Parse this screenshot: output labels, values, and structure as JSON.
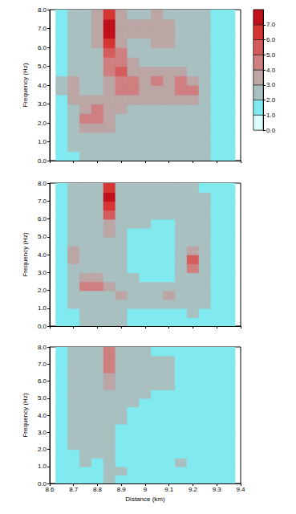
{
  "chart_data": [
    {
      "type": "heatmap",
      "y_label": "Frequency (Hz)",
      "tick_labels": "y",
      "x": [
        8.65,
        8.7,
        8.75,
        8.8,
        8.85,
        8.9,
        8.95,
        9.0,
        9.05,
        9.1,
        9.15,
        9.2,
        9.25,
        9.3,
        9.35
      ],
      "y": [
        0.25,
        0.75,
        1.25,
        1.75,
        2.25,
        2.75,
        3.25,
        3.75,
        4.25,
        4.75,
        5.25,
        5.75,
        6.25,
        6.75,
        7.25,
        7.75
      ],
      "cells": [
        [
          1.5,
          1.8,
          2.2,
          2.3,
          2.5,
          2.3,
          2.2,
          2.2,
          2.2,
          2.2,
          2.2,
          2.1,
          2.0,
          1.6,
          1.2
        ],
        [
          1.5,
          2.0,
          2.4,
          2.5,
          2.6,
          2.5,
          2.4,
          2.4,
          2.3,
          2.4,
          2.3,
          2.2,
          2.1,
          1.7,
          1.2
        ],
        [
          1.6,
          2.2,
          2.6,
          2.7,
          2.8,
          2.7,
          2.5,
          2.5,
          2.4,
          2.5,
          2.4,
          2.3,
          2.2,
          1.8,
          1.3
        ],
        [
          1.7,
          2.4,
          3.2,
          3.4,
          3.0,
          2.8,
          2.6,
          2.6,
          2.5,
          2.6,
          2.5,
          2.4,
          2.3,
          1.8,
          1.3
        ],
        [
          1.7,
          2.6,
          4.2,
          4.4,
          3.3,
          2.9,
          2.8,
          2.7,
          2.6,
          2.7,
          2.6,
          2.6,
          2.3,
          1.8,
          1.3
        ],
        [
          1.8,
          2.8,
          3.8,
          4.0,
          3.3,
          3.0,
          2.9,
          2.8,
          2.7,
          2.8,
          2.8,
          2.8,
          2.3,
          1.8,
          1.3
        ],
        [
          1.9,
          3.2,
          3.0,
          3.0,
          3.4,
          3.6,
          3.3,
          3.0,
          3.1,
          3.3,
          3.4,
          3.6,
          2.4,
          1.8,
          1.3
        ],
        [
          2.0,
          3.6,
          2.8,
          2.8,
          3.6,
          4.6,
          4.8,
          3.4,
          3.8,
          3.8,
          4.6,
          4.4,
          2.5,
          1.8,
          1.3
        ],
        [
          2.0,
          3.4,
          2.7,
          2.8,
          3.8,
          4.8,
          4.2,
          3.2,
          4.2,
          3.6,
          4.4,
          3.4,
          2.4,
          1.8,
          1.3
        ],
        [
          1.9,
          2.8,
          2.6,
          2.8,
          4.2,
          5.0,
          3.4,
          3.0,
          3.0,
          3.0,
          3.2,
          2.8,
          2.3,
          1.8,
          1.3
        ],
        [
          1.8,
          2.6,
          2.6,
          2.8,
          4.6,
          4.8,
          3.0,
          2.8,
          2.8,
          2.8,
          2.8,
          2.6,
          2.2,
          1.8,
          1.3
        ],
        [
          1.8,
          2.6,
          2.7,
          2.9,
          5.2,
          4.2,
          2.9,
          2.8,
          2.8,
          2.9,
          2.8,
          2.6,
          2.2,
          1.8,
          1.3
        ],
        [
          1.8,
          2.6,
          2.8,
          3.0,
          6.2,
          3.6,
          2.9,
          2.9,
          3.2,
          3.0,
          2.8,
          2.6,
          2.2,
          1.8,
          1.3
        ],
        [
          1.8,
          2.6,
          2.8,
          3.2,
          7.2,
          3.4,
          3.0,
          3.0,
          3.4,
          3.2,
          2.8,
          2.6,
          2.2,
          1.8,
          1.3
        ],
        [
          1.8,
          2.6,
          2.8,
          3.2,
          7.4,
          3.6,
          3.0,
          3.0,
          3.2,
          3.1,
          2.8,
          2.6,
          2.2,
          1.8,
          1.3
        ],
        [
          1.8,
          2.5,
          2.7,
          3.0,
          6.4,
          3.4,
          2.9,
          2.9,
          3.0,
          2.9,
          2.7,
          2.5,
          2.1,
          1.8,
          1.3
        ]
      ],
      "xlim": [
        8.6,
        9.4
      ],
      "xticks": [
        8.6,
        8.7,
        8.8,
        8.9,
        9.0,
        9.1,
        9.2,
        9.3,
        9.4
      ],
      "ylim": [
        0,
        8
      ],
      "yticks": [
        {
          "value": 0,
          "label": "0.0"
        },
        {
          "value": 1,
          "label": "1.0"
        },
        {
          "value": 2,
          "label": "2.0"
        },
        {
          "value": 3,
          "label": "3.0"
        },
        {
          "value": 4,
          "label": "4.0"
        },
        {
          "value": 5,
          "label": "5.0"
        },
        {
          "value": 6,
          "label": "6.0"
        },
        {
          "value": 7,
          "label": "7.0"
        },
        {
          "value": 8,
          "label": "8.0"
        }
      ],
      "colorbar": {
        "range": [
          0,
          8
        ],
        "ticks": [
          {
            "value": 0,
            "label": "0.0"
          },
          {
            "value": 1,
            "label": "1.0"
          },
          {
            "value": 2,
            "label": "2.0"
          },
          {
            "value": 3,
            "label": "3.0"
          },
          {
            "value": 4,
            "label": "4.0"
          },
          {
            "value": 5,
            "label": "5.0"
          },
          {
            "value": 6,
            "label": "6.0"
          },
          {
            "value": 7,
            "label": "7.0"
          }
        ],
        "bounds": [
          0,
          1,
          2,
          3,
          4,
          5,
          6,
          7,
          8
        ],
        "colors": [
          "#dcfafb",
          "#80eaf0",
          "#a9c0c0",
          "#bba5a5",
          "#cf7f7f",
          "#d45c5c",
          "#d73434",
          "#c0101c"
        ]
      }
    },
    {
      "type": "heatmap",
      "y_label": "Frequency (Hz)",
      "tick_labels": "y",
      "x": [
        8.65,
        8.7,
        8.75,
        8.8,
        8.85,
        8.9,
        8.95,
        9.0,
        9.05,
        9.1,
        9.15,
        9.2,
        9.25,
        9.3,
        9.35
      ],
      "y": [
        0.25,
        0.75,
        1.25,
        1.75,
        2.25,
        2.75,
        3.25,
        3.75,
        4.25,
        4.75,
        5.25,
        5.75,
        6.25,
        6.75,
        7.25,
        7.75
      ],
      "cells": [
        [
          1.4,
          1.8,
          2.1,
          2.1,
          2.2,
          2.0,
          1.8,
          1.8,
          1.8,
          1.8,
          1.8,
          1.9,
          1.8,
          1.5,
          1.2
        ],
        [
          1.5,
          1.9,
          2.2,
          2.2,
          2.3,
          2.1,
          1.9,
          1.9,
          1.9,
          1.9,
          1.9,
          2.0,
          1.9,
          1.5,
          1.2
        ],
        [
          1.5,
          2.0,
          2.3,
          2.4,
          2.4,
          2.5,
          2.4,
          2.3,
          2.4,
          2.4,
          2.2,
          2.1,
          2.0,
          1.5,
          1.2
        ],
        [
          1.6,
          2.2,
          2.6,
          2.7,
          2.5,
          3.2,
          2.6,
          2.6,
          2.8,
          3.2,
          2.6,
          2.2,
          2.0,
          1.5,
          1.2
        ],
        [
          1.7,
          2.4,
          4.6,
          4.6,
          3.0,
          2.4,
          2.2,
          2.1,
          2.1,
          2.2,
          2.2,
          2.4,
          2.0,
          1.5,
          1.2
        ],
        [
          1.7,
          2.5,
          3.8,
          3.6,
          2.6,
          2.2,
          2.0,
          1.9,
          1.9,
          1.9,
          2.2,
          2.8,
          2.0,
          1.5,
          1.2
        ],
        [
          1.8,
          2.8,
          2.5,
          2.4,
          2.4,
          2.1,
          1.9,
          1.8,
          1.8,
          1.8,
          2.3,
          4.2,
          2.1,
          1.5,
          1.2
        ],
        [
          1.8,
          3.4,
          2.4,
          2.3,
          2.5,
          2.1,
          1.9,
          1.8,
          1.8,
          1.8,
          2.4,
          5.0,
          2.2,
          1.5,
          1.2
        ],
        [
          1.8,
          3.0,
          2.3,
          2.3,
          2.6,
          2.1,
          1.9,
          1.8,
          1.8,
          1.8,
          2.3,
          3.6,
          2.1,
          1.5,
          1.2
        ],
        [
          1.7,
          2.5,
          2.2,
          2.3,
          2.8,
          2.1,
          1.9,
          1.8,
          1.8,
          1.8,
          2.2,
          2.6,
          2.0,
          1.5,
          1.2
        ],
        [
          1.7,
          2.4,
          2.2,
          2.3,
          3.0,
          2.1,
          1.9,
          1.9,
          1.8,
          1.8,
          2.1,
          2.4,
          2.0,
          1.5,
          1.2
        ],
        [
          1.7,
          2.4,
          2.2,
          2.4,
          3.6,
          2.1,
          2.0,
          2.0,
          1.9,
          1.9,
          2.1,
          2.3,
          2.0,
          1.5,
          1.2
        ],
        [
          1.7,
          2.4,
          2.3,
          2.5,
          5.0,
          2.2,
          2.1,
          2.1,
          2.0,
          2.0,
          2.1,
          2.3,
          2.0,
          1.5,
          1.2
        ],
        [
          1.7,
          2.4,
          2.3,
          2.6,
          6.8,
          2.3,
          2.2,
          2.2,
          2.1,
          2.1,
          2.1,
          2.3,
          2.0,
          1.5,
          1.2
        ],
        [
          1.7,
          2.4,
          2.3,
          2.6,
          7.2,
          2.3,
          2.2,
          2.2,
          2.1,
          2.1,
          2.1,
          2.3,
          2.0,
          1.5,
          1.2
        ],
        [
          1.6,
          2.3,
          2.2,
          2.5,
          6.0,
          2.2,
          2.1,
          2.1,
          2.0,
          2.0,
          2.0,
          2.2,
          1.9,
          1.5,
          1.2
        ]
      ],
      "xlim": [
        8.6,
        9.4
      ],
      "xticks": [
        8.6,
        8.7,
        8.8,
        8.9,
        9.0,
        9.1,
        9.2,
        9.3,
        9.4
      ],
      "ylim": [
        0,
        8
      ],
      "yticks": [
        {
          "value": 0,
          "label": "0.0"
        },
        {
          "value": 1,
          "label": "1.0"
        },
        {
          "value": 2,
          "label": "2.0"
        },
        {
          "value": 3,
          "label": "3.0"
        },
        {
          "value": 4,
          "label": "4.0"
        },
        {
          "value": 5,
          "label": "5.0"
        },
        {
          "value": 6,
          "label": "6.0"
        },
        {
          "value": 7,
          "label": "7.0"
        },
        {
          "value": 8,
          "label": "8.0"
        }
      ]
    },
    {
      "type": "heatmap",
      "x_label": "Distance (km)",
      "y_label": "Frequency (Hz)",
      "x": [
        8.65,
        8.7,
        8.75,
        8.8,
        8.85,
        8.9,
        8.95,
        9.0,
        9.05,
        9.1,
        9.15,
        9.2,
        9.25,
        9.3,
        9.35
      ],
      "y": [
        0.25,
        0.75,
        1.25,
        1.75,
        2.25,
        2.75,
        3.25,
        3.75,
        4.25,
        4.75,
        5.25,
        5.75,
        6.25,
        6.75,
        7.25,
        7.75
      ],
      "cells": [
        [
          1.2,
          1.4,
          1.6,
          1.6,
          2.0,
          1.5,
          1.4,
          1.4,
          1.3,
          1.3,
          1.3,
          1.4,
          1.4,
          1.2,
          1.0
        ],
        [
          1.3,
          1.6,
          1.8,
          1.8,
          2.2,
          2.1,
          1.9,
          1.7,
          1.6,
          1.7,
          1.8,
          1.6,
          1.5,
          1.3,
          1.0
        ],
        [
          1.4,
          1.7,
          2.0,
          1.9,
          2.4,
          1.7,
          1.6,
          1.6,
          1.6,
          1.7,
          2.1,
          1.8,
          1.6,
          1.3,
          1.0
        ],
        [
          1.5,
          1.8,
          2.1,
          2.0,
          2.4,
          1.7,
          1.6,
          1.6,
          1.6,
          1.6,
          1.7,
          1.7,
          1.6,
          1.3,
          1.0
        ],
        [
          1.6,
          2.0,
          2.6,
          2.3,
          2.4,
          1.8,
          1.7,
          1.6,
          1.7,
          1.7,
          1.7,
          1.7,
          1.6,
          1.3,
          1.0
        ],
        [
          1.6,
          2.0,
          2.2,
          2.1,
          2.4,
          1.8,
          1.7,
          1.6,
          1.7,
          1.7,
          1.7,
          1.7,
          1.6,
          1.3,
          1.0
        ],
        [
          1.6,
          2.0,
          2.1,
          2.1,
          2.5,
          1.9,
          1.7,
          1.7,
          1.7,
          1.7,
          1.7,
          1.8,
          1.6,
          1.3,
          1.0
        ],
        [
          1.6,
          2.1,
          2.1,
          2.1,
          2.6,
          2.0,
          1.8,
          1.7,
          1.8,
          1.8,
          1.8,
          1.8,
          1.6,
          1.3,
          1.0
        ],
        [
          1.7,
          2.2,
          2.1,
          2.2,
          2.6,
          2.1,
          1.9,
          1.8,
          1.8,
          1.8,
          1.9,
          1.8,
          1.6,
          1.3,
          1.0
        ],
        [
          1.7,
          2.2,
          2.2,
          2.2,
          2.7,
          2.1,
          2.0,
          1.9,
          1.9,
          1.9,
          1.9,
          1.8,
          1.6,
          1.3,
          1.0
        ],
        [
          1.7,
          2.2,
          2.2,
          2.2,
          2.8,
          2.2,
          2.0,
          2.0,
          1.9,
          1.9,
          1.9,
          1.8,
          1.6,
          1.3,
          1.0
        ],
        [
          1.7,
          2.2,
          2.2,
          2.3,
          3.0,
          2.2,
          2.1,
          2.0,
          2.0,
          2.0,
          1.9,
          1.8,
          1.6,
          1.3,
          1.0
        ],
        [
          1.7,
          2.2,
          2.2,
          2.3,
          3.6,
          2.2,
          2.1,
          2.1,
          2.0,
          2.0,
          1.9,
          1.8,
          1.6,
          1.3,
          1.0
        ],
        [
          1.7,
          2.2,
          2.2,
          2.3,
          4.2,
          2.2,
          2.1,
          2.1,
          2.0,
          2.0,
          1.9,
          1.8,
          1.6,
          1.3,
          1.0
        ],
        [
          1.7,
          2.2,
          2.2,
          2.3,
          4.6,
          2.2,
          2.1,
          2.1,
          2.0,
          2.0,
          1.9,
          1.8,
          1.6,
          1.3,
          1.0
        ],
        [
          1.6,
          2.1,
          2.1,
          2.2,
          4.2,
          2.1,
          2.0,
          2.0,
          1.9,
          1.9,
          1.8,
          1.7,
          1.5,
          1.3,
          1.0
        ]
      ],
      "xlim": [
        8.6,
        9.4
      ],
      "xticks": [
        8.6,
        8.7,
        8.8,
        8.9,
        9.0,
        9.1,
        9.2,
        9.3,
        9.4
      ],
      "ylim": [
        0,
        8
      ],
      "yticks": [
        {
          "value": 0,
          "label": "0.0"
        },
        {
          "value": 1,
          "label": "1.0"
        },
        {
          "value": 2,
          "label": "2.0"
        },
        {
          "value": 3,
          "label": "3.0"
        },
        {
          "value": 4,
          "label": "4.0"
        },
        {
          "value": 5,
          "label": "5.0"
        },
        {
          "value": 6,
          "label": "6.0"
        },
        {
          "value": 7,
          "label": "7.0"
        },
        {
          "value": 8,
          "label": "8.0"
        }
      ]
    }
  ]
}
